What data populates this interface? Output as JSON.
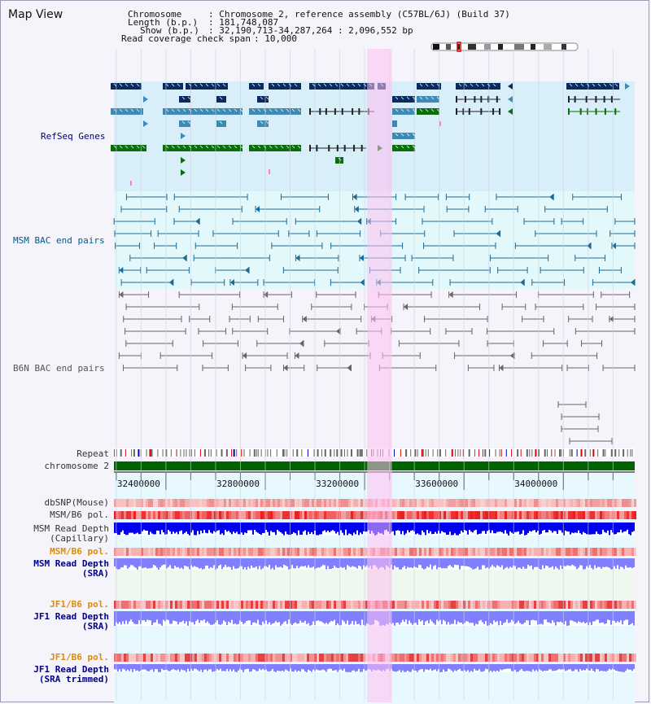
{
  "app": {
    "title": "Map View"
  },
  "info": {
    "chromosome_key": "Chromosome",
    "chromosome_value": ": Chromosome 2, reference assembly (C57BL/6J) (Build 37)",
    "length_key": "Length (b.p.)",
    "length_value": ": 181,748,087",
    "show_key": "Show (b.p.)",
    "show_value": ": 32,190,713-34,287,264 : 2,096,552 bp",
    "coverage_key": "Read coverage check span",
    "coverage_value": ": 10,000"
  },
  "tracks": {
    "refseq": "RefSeq Genes",
    "msm_bac": "MSM BAC end pairs",
    "b6n_bac": "B6N BAC end pairs",
    "repeat": "Repeat",
    "chromosome": "chromosome 2",
    "dbsnp": "dbSNP(Mouse)",
    "msm_b6_pol_1": "MSM/B6 pol.",
    "msm_depth_cap_1": "MSM Read Depth",
    "msm_depth_cap_2": "(Capillary)",
    "msm_b6_pol_2": "MSM/B6 pol.",
    "msm_depth_sra_1": "MSM Read Depth",
    "msm_depth_sra_2": "(SRA)",
    "jf1_b6_pol_1": "JF1/B6 pol.",
    "jf1_depth_sra_1": "JF1 Read Depth",
    "jf1_depth_sra_2": "(SRA)",
    "jf1_b6_pol_2": "JF1/B6 pol.",
    "jf1_depth_trim_1": "JF1 Read Depth",
    "jf1_depth_trim_2": "(SRA trimmed)"
  },
  "axis": {
    "start": 32190713,
    "end": 34287264,
    "ticks": [
      "32400000",
      "32800000",
      "33200000",
      "33600000",
      "34000000"
    ]
  },
  "highlight": {
    "start": 33210000,
    "end": 33310000
  },
  "colors": {
    "refseq_bg": "#d8eef8",
    "msm_bg": "#e2f8fa",
    "gene_dark": "#0b2a5e",
    "gene_light": "#3d8bb5",
    "gene_green": "#0a6e0a",
    "msm_line": "#1e6a96",
    "b6n_line": "#666666",
    "chrom_bar": "#006400",
    "highlight": "#ffc0f0",
    "depth_blue": "#0000ee",
    "depth_violet": "#8080ff"
  }
}
